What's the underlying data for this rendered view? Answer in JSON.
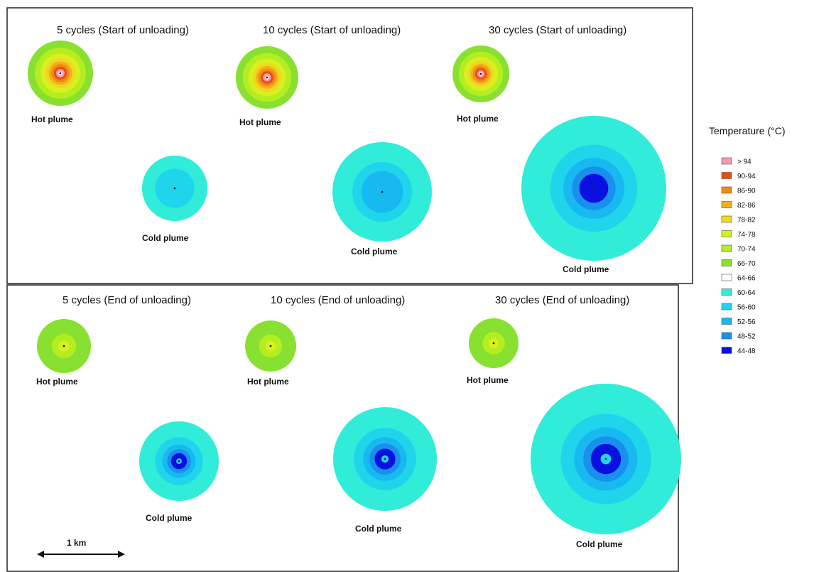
{
  "legend": {
    "title": "Temperature (°C)",
    "entries": [
      {
        "label": "> 94",
        "color": "#f29cb4"
      },
      {
        "label": "90-94",
        "color": "#f04a10"
      },
      {
        "label": "86-90",
        "color": "#f08a10"
      },
      {
        "label": "82-86",
        "color": "#f0b020"
      },
      {
        "label": "78-82",
        "color": "#f0d820"
      },
      {
        "label": "74-78",
        "color": "#d8f020"
      },
      {
        "label": "70-74",
        "color": "#b4ee20"
      },
      {
        "label": "66-70",
        "color": "#88e030"
      },
      {
        "label": "64-66",
        "color": "#ffffff"
      },
      {
        "label": "60-64",
        "color": "#30ecd8"
      },
      {
        "label": "56-60",
        "color": "#20d4ec"
      },
      {
        "label": "52-56",
        "color": "#18b8f0"
      },
      {
        "label": "48-52",
        "color": "#1890ec"
      },
      {
        "label": "44-48",
        "color": "#0a10e0"
      }
    ]
  },
  "scale_bar": {
    "label": "1 km"
  },
  "panels": [
    {
      "title": "5 cycles (Start of unloading)",
      "hot_label": "Hot plume",
      "cold_label": "Cold plume",
      "hot_bands": [
        "66-70",
        "70-74",
        "74-78",
        "78-82",
        "82-86",
        "86-90",
        "90-94",
        "> 94",
        "64-66"
      ],
      "cold_bands": [
        "60-64",
        "56-60"
      ]
    },
    {
      "title": "10 cycles (Start of unloading)",
      "hot_label": "Hot plume",
      "cold_label": "Cold plume",
      "hot_bands": [
        "66-70",
        "70-74",
        "74-78",
        "78-82",
        "82-86",
        "86-90",
        "90-94",
        "> 94",
        "64-66"
      ],
      "cold_bands": [
        "60-64",
        "56-60",
        "52-56"
      ]
    },
    {
      "title": "30 cycles (Start of unloading)",
      "hot_label": "Hot plume",
      "cold_label": "Cold plume",
      "hot_bands": [
        "66-70",
        "70-74",
        "74-78",
        "78-82",
        "82-86",
        "86-90",
        "90-94",
        "> 94",
        "64-66"
      ],
      "cold_bands": [
        "60-64",
        "56-60",
        "52-56",
        "48-52",
        "44-48"
      ]
    },
    {
      "title": "5 cycles (End of unloading)",
      "hot_label": "Hot plume",
      "cold_label": "Cold plume",
      "hot_bands": [
        "66-70",
        "70-74",
        "74-78"
      ],
      "cold_bands": [
        "60-64",
        "56-60",
        "52-56",
        "48-52",
        "44-48",
        "56-60"
      ]
    },
    {
      "title": "10 cycles (End of unloading)",
      "hot_label": "Hot plume",
      "cold_label": "Cold plume",
      "hot_bands": [
        "66-70",
        "70-74",
        "74-78"
      ],
      "cold_bands": [
        "60-64",
        "56-60",
        "52-56",
        "48-52",
        "44-48",
        "56-60"
      ]
    },
    {
      "title": "30 cycles (End of unloading)",
      "hot_label": "Hot plume",
      "cold_label": "Cold plume",
      "hot_bands": [
        "66-70",
        "70-74",
        "74-78"
      ],
      "cold_bands": [
        "60-64",
        "56-60",
        "52-56",
        "48-52",
        "44-48",
        "56-60"
      ]
    }
  ]
}
